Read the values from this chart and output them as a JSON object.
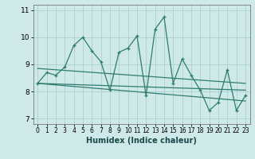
{
  "xlabel": "Humidex (Indice chaleur)",
  "xlim": [
    -0.5,
    23.5
  ],
  "ylim": [
    6.8,
    11.2
  ],
  "yticks": [
    7,
    8,
    9,
    10,
    11
  ],
  "xticks": [
    0,
    1,
    2,
    3,
    4,
    5,
    6,
    7,
    8,
    9,
    10,
    11,
    12,
    13,
    14,
    15,
    16,
    17,
    18,
    19,
    20,
    21,
    22,
    23
  ],
  "bg_color": "#cfe8e8",
  "grid_color": "#aacfcf",
  "line_color": "#2e7d6e",
  "line1": [
    8.3,
    8.7,
    8.6,
    8.9,
    9.7,
    10.0,
    9.5,
    9.1,
    8.05,
    9.45,
    9.6,
    10.05,
    7.85,
    10.3,
    10.75,
    8.3,
    9.2,
    8.6,
    8.05,
    7.3,
    7.6,
    8.8,
    7.3,
    7.85
  ],
  "line2": [
    [
      0,
      8.3
    ],
    [
      23,
      8.05
    ]
  ],
  "line3": [
    [
      0,
      8.3
    ],
    [
      23,
      7.65
    ]
  ],
  "line4": [
    [
      0,
      8.85
    ],
    [
      23,
      8.3
    ]
  ]
}
